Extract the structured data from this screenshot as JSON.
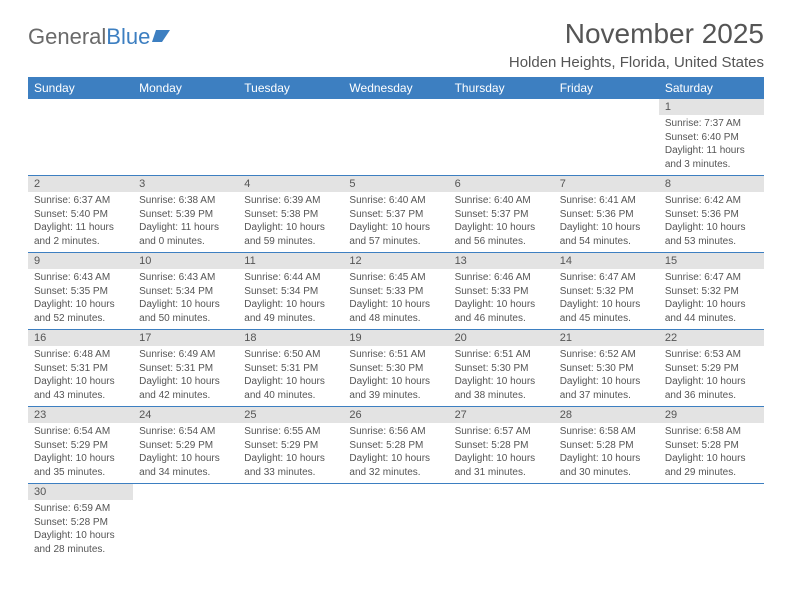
{
  "logo": {
    "part1": "General",
    "part2": "Blue"
  },
  "title": "November 2025",
  "location": "Holden Heights, Florida, United States",
  "colors": {
    "header_bg": "#3d7fc1",
    "header_text": "#ffffff",
    "daynum_bg": "#e3e3e3",
    "row_divider": "#3d7fc1",
    "text": "#555555",
    "page_bg": "#ffffff"
  },
  "weekdays": [
    "Sunday",
    "Monday",
    "Tuesday",
    "Wednesday",
    "Thursday",
    "Friday",
    "Saturday"
  ],
  "weeks": [
    [
      null,
      null,
      null,
      null,
      null,
      null,
      {
        "n": "1",
        "sr": "Sunrise: 7:37 AM",
        "ss": "Sunset: 6:40 PM",
        "d1": "Daylight: 11 hours",
        "d2": "and 3 minutes."
      }
    ],
    [
      {
        "n": "2",
        "sr": "Sunrise: 6:37 AM",
        "ss": "Sunset: 5:40 PM",
        "d1": "Daylight: 11 hours",
        "d2": "and 2 minutes."
      },
      {
        "n": "3",
        "sr": "Sunrise: 6:38 AM",
        "ss": "Sunset: 5:39 PM",
        "d1": "Daylight: 11 hours",
        "d2": "and 0 minutes."
      },
      {
        "n": "4",
        "sr": "Sunrise: 6:39 AM",
        "ss": "Sunset: 5:38 PM",
        "d1": "Daylight: 10 hours",
        "d2": "and 59 minutes."
      },
      {
        "n": "5",
        "sr": "Sunrise: 6:40 AM",
        "ss": "Sunset: 5:37 PM",
        "d1": "Daylight: 10 hours",
        "d2": "and 57 minutes."
      },
      {
        "n": "6",
        "sr": "Sunrise: 6:40 AM",
        "ss": "Sunset: 5:37 PM",
        "d1": "Daylight: 10 hours",
        "d2": "and 56 minutes."
      },
      {
        "n": "7",
        "sr": "Sunrise: 6:41 AM",
        "ss": "Sunset: 5:36 PM",
        "d1": "Daylight: 10 hours",
        "d2": "and 54 minutes."
      },
      {
        "n": "8",
        "sr": "Sunrise: 6:42 AM",
        "ss": "Sunset: 5:36 PM",
        "d1": "Daylight: 10 hours",
        "d2": "and 53 minutes."
      }
    ],
    [
      {
        "n": "9",
        "sr": "Sunrise: 6:43 AM",
        "ss": "Sunset: 5:35 PM",
        "d1": "Daylight: 10 hours",
        "d2": "and 52 minutes."
      },
      {
        "n": "10",
        "sr": "Sunrise: 6:43 AM",
        "ss": "Sunset: 5:34 PM",
        "d1": "Daylight: 10 hours",
        "d2": "and 50 minutes."
      },
      {
        "n": "11",
        "sr": "Sunrise: 6:44 AM",
        "ss": "Sunset: 5:34 PM",
        "d1": "Daylight: 10 hours",
        "d2": "and 49 minutes."
      },
      {
        "n": "12",
        "sr": "Sunrise: 6:45 AM",
        "ss": "Sunset: 5:33 PM",
        "d1": "Daylight: 10 hours",
        "d2": "and 48 minutes."
      },
      {
        "n": "13",
        "sr": "Sunrise: 6:46 AM",
        "ss": "Sunset: 5:33 PM",
        "d1": "Daylight: 10 hours",
        "d2": "and 46 minutes."
      },
      {
        "n": "14",
        "sr": "Sunrise: 6:47 AM",
        "ss": "Sunset: 5:32 PM",
        "d1": "Daylight: 10 hours",
        "d2": "and 45 minutes."
      },
      {
        "n": "15",
        "sr": "Sunrise: 6:47 AM",
        "ss": "Sunset: 5:32 PM",
        "d1": "Daylight: 10 hours",
        "d2": "and 44 minutes."
      }
    ],
    [
      {
        "n": "16",
        "sr": "Sunrise: 6:48 AM",
        "ss": "Sunset: 5:31 PM",
        "d1": "Daylight: 10 hours",
        "d2": "and 43 minutes."
      },
      {
        "n": "17",
        "sr": "Sunrise: 6:49 AM",
        "ss": "Sunset: 5:31 PM",
        "d1": "Daylight: 10 hours",
        "d2": "and 42 minutes."
      },
      {
        "n": "18",
        "sr": "Sunrise: 6:50 AM",
        "ss": "Sunset: 5:31 PM",
        "d1": "Daylight: 10 hours",
        "d2": "and 40 minutes."
      },
      {
        "n": "19",
        "sr": "Sunrise: 6:51 AM",
        "ss": "Sunset: 5:30 PM",
        "d1": "Daylight: 10 hours",
        "d2": "and 39 minutes."
      },
      {
        "n": "20",
        "sr": "Sunrise: 6:51 AM",
        "ss": "Sunset: 5:30 PM",
        "d1": "Daylight: 10 hours",
        "d2": "and 38 minutes."
      },
      {
        "n": "21",
        "sr": "Sunrise: 6:52 AM",
        "ss": "Sunset: 5:30 PM",
        "d1": "Daylight: 10 hours",
        "d2": "and 37 minutes."
      },
      {
        "n": "22",
        "sr": "Sunrise: 6:53 AM",
        "ss": "Sunset: 5:29 PM",
        "d1": "Daylight: 10 hours",
        "d2": "and 36 minutes."
      }
    ],
    [
      {
        "n": "23",
        "sr": "Sunrise: 6:54 AM",
        "ss": "Sunset: 5:29 PM",
        "d1": "Daylight: 10 hours",
        "d2": "and 35 minutes."
      },
      {
        "n": "24",
        "sr": "Sunrise: 6:54 AM",
        "ss": "Sunset: 5:29 PM",
        "d1": "Daylight: 10 hours",
        "d2": "and 34 minutes."
      },
      {
        "n": "25",
        "sr": "Sunrise: 6:55 AM",
        "ss": "Sunset: 5:29 PM",
        "d1": "Daylight: 10 hours",
        "d2": "and 33 minutes."
      },
      {
        "n": "26",
        "sr": "Sunrise: 6:56 AM",
        "ss": "Sunset: 5:28 PM",
        "d1": "Daylight: 10 hours",
        "d2": "and 32 minutes."
      },
      {
        "n": "27",
        "sr": "Sunrise: 6:57 AM",
        "ss": "Sunset: 5:28 PM",
        "d1": "Daylight: 10 hours",
        "d2": "and 31 minutes."
      },
      {
        "n": "28",
        "sr": "Sunrise: 6:58 AM",
        "ss": "Sunset: 5:28 PM",
        "d1": "Daylight: 10 hours",
        "d2": "and 30 minutes."
      },
      {
        "n": "29",
        "sr": "Sunrise: 6:58 AM",
        "ss": "Sunset: 5:28 PM",
        "d1": "Daylight: 10 hours",
        "d2": "and 29 minutes."
      }
    ],
    [
      {
        "n": "30",
        "sr": "Sunrise: 6:59 AM",
        "ss": "Sunset: 5:28 PM",
        "d1": "Daylight: 10 hours",
        "d2": "and 28 minutes."
      },
      null,
      null,
      null,
      null,
      null,
      null
    ]
  ]
}
